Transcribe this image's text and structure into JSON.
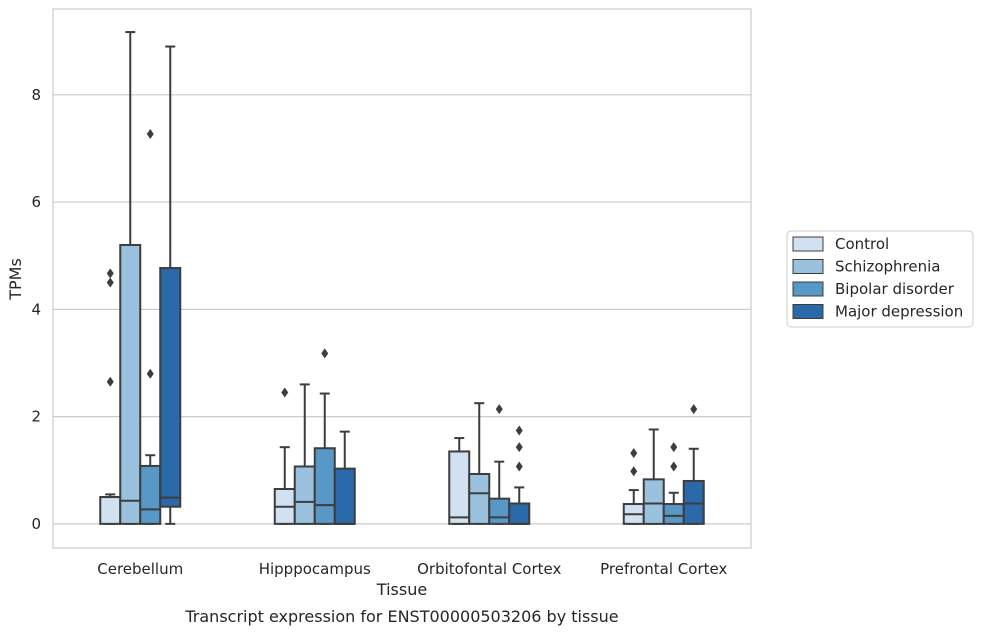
{
  "caption": "Transcript expression for ENST00000503206 by tissue",
  "chart_data": {
    "type": "box",
    "xlabel": "Tissue",
    "ylabel": "TPMs",
    "ylim": [
      -0.45,
      9.6
    ],
    "yticks": [
      0,
      2,
      4,
      6,
      8
    ],
    "grid": "horizontal",
    "legend_position": "right",
    "categories": [
      "Cerebellum",
      "Hipppocampus",
      "Orbitofontal Cortex",
      "Prefrontal Cortex"
    ],
    "series": [
      {
        "name": "Control",
        "color": "#d1e1f1",
        "boxes": [
          {
            "q1": 0,
            "median": 0.5,
            "q3": 0.5,
            "whisker_low": 0,
            "whisker_high": 0.55,
            "outliers": [
              2.65,
              4.5,
              4.67
            ]
          },
          {
            "q1": 0,
            "median": 0.32,
            "q3": 0.65,
            "whisker_low": 0,
            "whisker_high": 1.43,
            "outliers": [
              2.45
            ]
          },
          {
            "q1": 0,
            "median": 0.12,
            "q3": 1.35,
            "whisker_low": 0,
            "whisker_high": 1.6,
            "outliers": []
          },
          {
            "q1": 0,
            "median": 0.18,
            "q3": 0.37,
            "whisker_low": 0,
            "whisker_high": 0.63,
            "outliers": [
              0.98,
              1.32
            ]
          }
        ]
      },
      {
        "name": "Schizophrenia",
        "color": "#9ac2de",
        "boxes": [
          {
            "q1": 0,
            "median": 0.43,
            "q3": 5.2,
            "whisker_low": 0,
            "whisker_high": 9.17,
            "outliers": []
          },
          {
            "q1": 0,
            "median": 0.41,
            "q3": 1.07,
            "whisker_low": 0,
            "whisker_high": 2.6,
            "outliers": []
          },
          {
            "q1": 0,
            "median": 0.57,
            "q3": 0.93,
            "whisker_low": 0,
            "whisker_high": 2.25,
            "outliers": []
          },
          {
            "q1": 0,
            "median": 0.38,
            "q3": 0.83,
            "whisker_low": 0,
            "whisker_high": 1.76,
            "outliers": []
          }
        ]
      },
      {
        "name": "Bipolar disorder",
        "color": "#5898c6",
        "boxes": [
          {
            "q1": 0,
            "median": 0.27,
            "q3": 1.08,
            "whisker_low": 0,
            "whisker_high": 1.28,
            "outliers": [
              2.8,
              7.27
            ]
          },
          {
            "q1": 0,
            "median": 0.35,
            "q3": 1.41,
            "whisker_low": 0,
            "whisker_high": 2.43,
            "outliers": [
              3.18
            ]
          },
          {
            "q1": 0,
            "median": 0.12,
            "q3": 0.47,
            "whisker_low": 0,
            "whisker_high": 1.16,
            "outliers": [
              2.14
            ]
          },
          {
            "q1": 0,
            "median": 0.15,
            "q3": 0.37,
            "whisker_low": 0,
            "whisker_high": 0.58,
            "outliers": [
              1.07,
              1.43
            ]
          }
        ]
      },
      {
        "name": "Major depression",
        "color": "#2a6aaa",
        "boxes": [
          {
            "q1": 0.32,
            "median": 0.49,
            "q3": 4.77,
            "whisker_low": 0,
            "whisker_high": 8.9,
            "outliers": []
          },
          {
            "q1": 0,
            "median": 0,
            "q3": 1.03,
            "whisker_low": 0,
            "whisker_high": 1.72,
            "outliers": []
          },
          {
            "q1": 0,
            "median": 0,
            "q3": 0.38,
            "whisker_low": 0,
            "whisker_high": 0.68,
            "outliers": [
              1.07,
              1.43,
              1.74
            ]
          },
          {
            "q1": 0,
            "median": 0.38,
            "q3": 0.8,
            "whisker_low": 0,
            "whisker_high": 1.4,
            "outliers": [
              2.14
            ]
          }
        ]
      }
    ]
  }
}
